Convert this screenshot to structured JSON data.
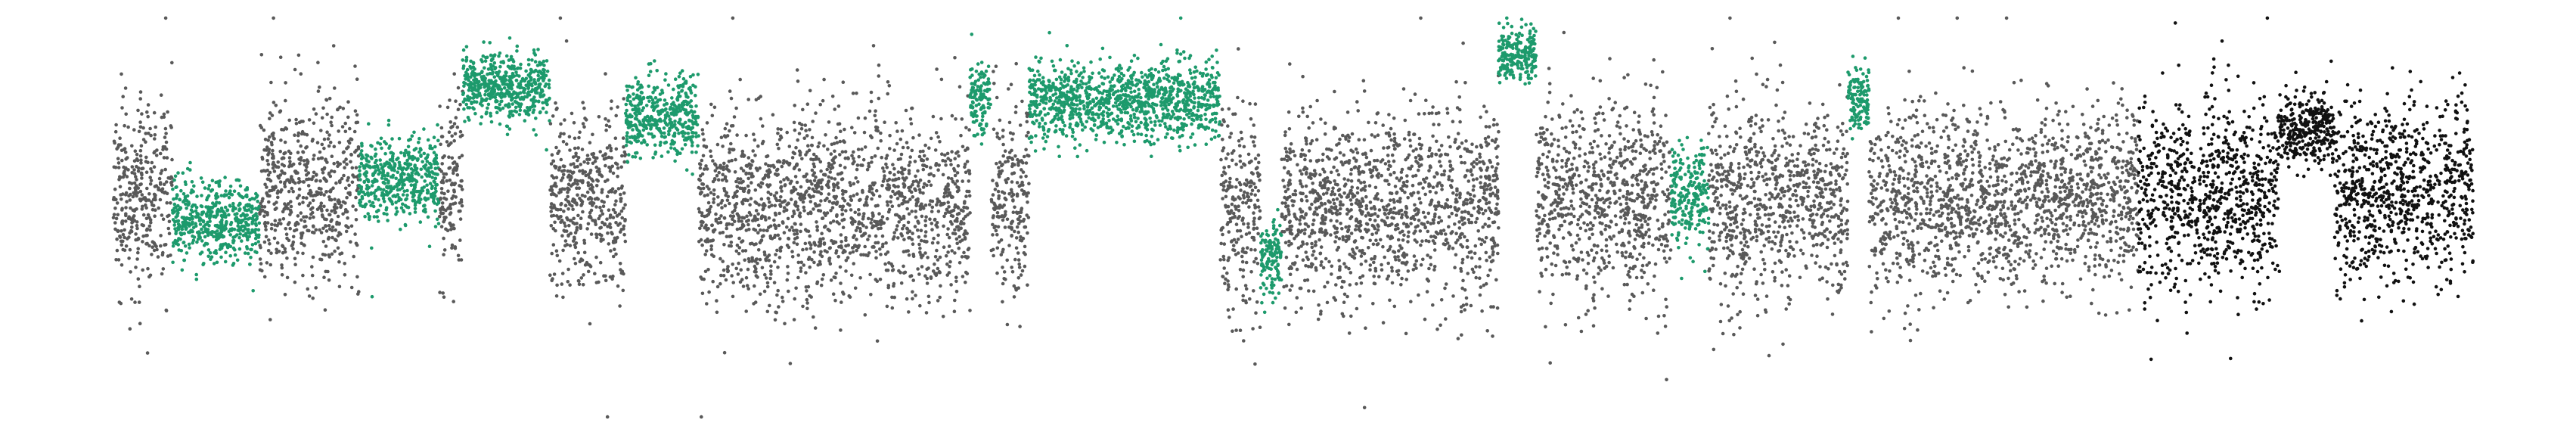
{
  "chart_data": {
    "type": "scatter",
    "title": "",
    "xlabel": "",
    "ylabel": "",
    "xlim": [
      0,
      100
    ],
    "ylim": [
      -3.6,
      3.2
    ],
    "grid": false,
    "axes_visible": false,
    "colors": {
      "neutral": "#595959",
      "highlight": "#1d9a6c",
      "dark": "#111111"
    },
    "segments": [
      {
        "x_start": 0.0,
        "x_end": 2.5,
        "mean": 0.2,
        "sd": 0.75,
        "series": "neutral"
      },
      {
        "x_start": 2.5,
        "x_end": 6.2,
        "mean": -0.25,
        "sd": 0.32,
        "series": "highlight"
      },
      {
        "x_start": 6.2,
        "x_end": 10.4,
        "mean": 0.3,
        "sd": 0.75,
        "series": "neutral"
      },
      {
        "x_start": 10.4,
        "x_end": 13.8,
        "mean": 0.45,
        "sd": 0.35,
        "series": "highlight"
      },
      {
        "x_start": 13.8,
        "x_end": 14.8,
        "mean": 0.3,
        "sd": 0.8,
        "series": "neutral"
      },
      {
        "x_start": 14.8,
        "x_end": 18.5,
        "mean": 2.0,
        "sd": 0.28,
        "series": "highlight"
      },
      {
        "x_start": 18.5,
        "x_end": 21.7,
        "mean": 0.15,
        "sd": 0.75,
        "series": "neutral"
      },
      {
        "x_start": 21.7,
        "x_end": 24.8,
        "mean": 1.5,
        "sd": 0.35,
        "series": "highlight"
      },
      {
        "x_start": 24.8,
        "x_end": 36.3,
        "mean": 0.0,
        "sd": 0.78,
        "series": "neutral"
      },
      {
        "x_start": 36.3,
        "x_end": 37.2,
        "mean": 1.8,
        "sd": 0.3,
        "series": "highlight"
      },
      {
        "x_start": 37.2,
        "x_end": 38.8,
        "mean": 0.0,
        "sd": 0.8,
        "series": "neutral"
      },
      {
        "x_start": 38.8,
        "x_end": 46.9,
        "mean": 1.75,
        "sd": 0.32,
        "series": "highlight"
      },
      {
        "x_start": 46.9,
        "x_end": 48.6,
        "mean": 0.0,
        "sd": 0.8,
        "series": "neutral"
      },
      {
        "x_start": 48.6,
        "x_end": 49.5,
        "mean": -0.9,
        "sd": 0.35,
        "series": "highlight"
      },
      {
        "x_start": 49.5,
        "x_end": 58.7,
        "mean": 0.0,
        "sd": 0.78,
        "series": "neutral"
      },
      {
        "x_start": 58.7,
        "x_end": 60.3,
        "mean": 2.55,
        "sd": 0.22,
        "series": "highlight"
      },
      {
        "x_start": 60.3,
        "x_end": 66.0,
        "mean": 0.1,
        "sd": 0.8,
        "series": "neutral"
      },
      {
        "x_start": 66.0,
        "x_end": 67.6,
        "mean": 0.2,
        "sd": 0.45,
        "series": "highlight"
      },
      {
        "x_start": 67.6,
        "x_end": 73.5,
        "mean": 0.1,
        "sd": 0.8,
        "series": "neutral"
      },
      {
        "x_start": 73.5,
        "x_end": 74.4,
        "mean": 1.8,
        "sd": 0.3,
        "series": "highlight"
      },
      {
        "x_start": 74.4,
        "x_end": 85.8,
        "mean": 0.1,
        "sd": 0.75,
        "series": "neutral"
      },
      {
        "x_start": 85.8,
        "x_end": 91.8,
        "mean": 0.2,
        "sd": 0.8,
        "series": "dark"
      },
      {
        "x_start": 91.8,
        "x_end": 94.1,
        "mean": 1.3,
        "sd": 0.3,
        "series": "dark"
      },
      {
        "x_start": 94.1,
        "x_end": 100.0,
        "mean": 0.3,
        "sd": 0.75,
        "series": "dark"
      }
    ]
  }
}
